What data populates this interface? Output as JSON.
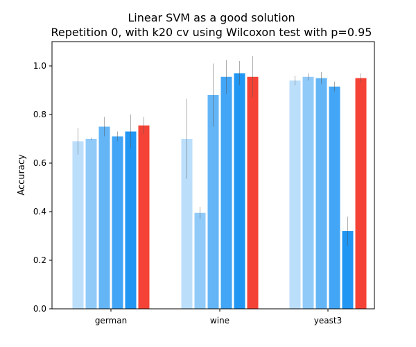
{
  "chart_data": {
    "type": "bar",
    "title_line1": "Linear SVM as a good solution",
    "title_line2": "Repetition 0, with k20 cv using Wilcoxon test with p=0.95",
    "xlabel": "",
    "ylabel": "Accuracy",
    "ylim": [
      0,
      1.1
    ],
    "yticks": [
      "0.0",
      "0.2",
      "0.4",
      "0.6",
      "0.8",
      "1.0"
    ],
    "ytick_values": [
      0.0,
      0.2,
      0.4,
      0.6,
      0.8,
      1.0
    ],
    "categories": [
      "german",
      "wine",
      "yeast3"
    ],
    "grid": false,
    "legend": "none",
    "series": [
      {
        "color": "#bbdefb",
        "values": [
          0.69,
          0.7,
          0.94
        ],
        "errors": [
          0.055,
          0.165,
          0.02
        ]
      },
      {
        "color": "#90caf9",
        "values": [
          0.7,
          0.395,
          0.955
        ],
        "errors": [
          0.005,
          0.025,
          0.015
        ]
      },
      {
        "color": "#64b5f6",
        "values": [
          0.75,
          0.88,
          0.95
        ],
        "errors": [
          0.04,
          0.13,
          0.025
        ]
      },
      {
        "color": "#42a5f5",
        "values": [
          0.71,
          0.955,
          0.915
        ],
        "errors": [
          0.02,
          0.07,
          0.02
        ]
      },
      {
        "color": "#2196f3",
        "values": [
          0.73,
          0.97,
          0.32
        ],
        "errors": [
          0.07,
          0.05,
          0.06
        ]
      },
      {
        "color": "#f44336",
        "values": [
          0.755,
          0.955,
          0.95
        ],
        "errors": [
          0.035,
          0.085,
          0.02
        ]
      }
    ]
  }
}
